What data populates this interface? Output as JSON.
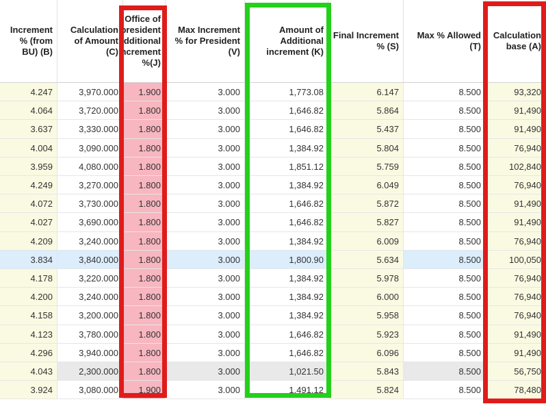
{
  "table": {
    "headers": [
      "Increment % (from BU) (B)",
      "Calculation of Amount (C)",
      "Office of president Additional increment %(J)",
      "Max Increment % for President (V)",
      "Amount of Additional increment (K)",
      "Final Increment % (S)",
      "Max % Allowed (T)",
      "Calculation base (A)"
    ],
    "rows": [
      [
        "4.247",
        "3,970.000",
        "1.900",
        "3.000",
        "1,773.08",
        "6.147",
        "8.500",
        "93,320"
      ],
      [
        "4.064",
        "3,720.000",
        "1.800",
        "3.000",
        "1,646.82",
        "5.864",
        "8.500",
        "91,490"
      ],
      [
        "3.637",
        "3,330.000",
        "1.800",
        "3.000",
        "1,646.82",
        "5.437",
        "8.500",
        "91,490"
      ],
      [
        "4.004",
        "3,090.000",
        "1.800",
        "3.000",
        "1,384.92",
        "5.804",
        "8.500",
        "76,940"
      ],
      [
        "3.959",
        "4,080.000",
        "1.800",
        "3.000",
        "1,851.12",
        "5.759",
        "8.500",
        "102,840"
      ],
      [
        "4.249",
        "3,270.000",
        "1.800",
        "3.000",
        "1,384.92",
        "6.049",
        "8.500",
        "76,940"
      ],
      [
        "4.072",
        "3,730.000",
        "1.800",
        "3.000",
        "1,646.82",
        "5.872",
        "8.500",
        "91,490"
      ],
      [
        "4.027",
        "3,690.000",
        "1.800",
        "3.000",
        "1,646.82",
        "5.827",
        "8.500",
        "91,490"
      ],
      [
        "4.209",
        "3,240.000",
        "1.800",
        "3.000",
        "1,384.92",
        "6.009",
        "8.500",
        "76,940"
      ],
      [
        "3.834",
        "3,840.000",
        "1.800",
        "3.000",
        "1,800.90",
        "5.634",
        "8.500",
        "100,050"
      ],
      [
        "4.178",
        "3,220.000",
        "1.800",
        "3.000",
        "1,384.92",
        "5.978",
        "8.500",
        "76,940"
      ],
      [
        "4.200",
        "3,240.000",
        "1.800",
        "3.000",
        "1,384.92",
        "6.000",
        "8.500",
        "76,940"
      ],
      [
        "4.158",
        "3,200.000",
        "1.800",
        "3.000",
        "1,384.92",
        "5.958",
        "8.500",
        "76,940"
      ],
      [
        "4.123",
        "3,780.000",
        "1.800",
        "3.000",
        "1,646.82",
        "5.923",
        "8.500",
        "91,490"
      ],
      [
        "4.296",
        "3,940.000",
        "1.800",
        "3.000",
        "1,646.82",
        "6.096",
        "8.500",
        "91,490"
      ],
      [
        "4.043",
        "2,300.000",
        "1.800",
        "3.000",
        "1,021.50",
        "5.843",
        "8.500",
        "56,750"
      ],
      [
        "3.924",
        "3,080.000",
        "1.900",
        "3.000",
        "1,491.12",
        "5.824",
        "8.500",
        "78,480"
      ]
    ]
  }
}
